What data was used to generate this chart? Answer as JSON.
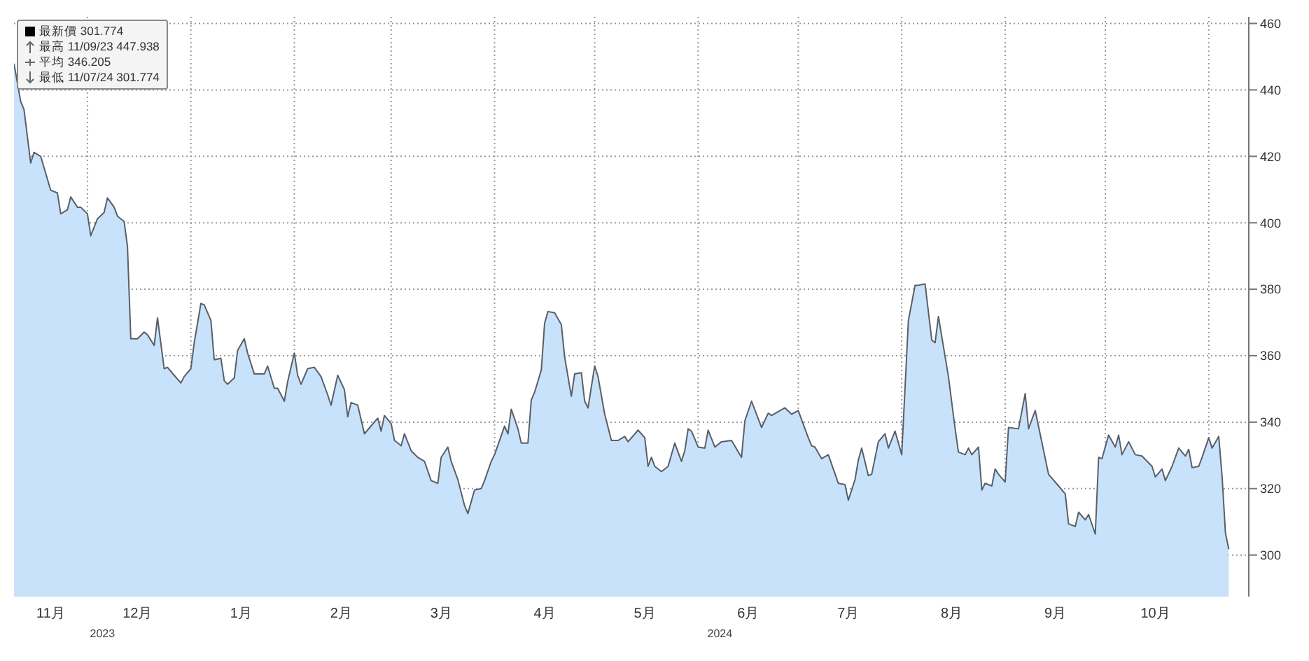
{
  "chart_data": {
    "type": "area",
    "annotations": [
      "最新價 301.774",
      "最高 11/09/23 447.938",
      "平均 346.205",
      "最低 11/07/24 301.774",
      "2023",
      "2024"
    ],
    "x": [
      "2023-11-09",
      "2023-11-11",
      "2023-11-12",
      "2023-11-14",
      "2023-11-15",
      "2023-11-17",
      "2023-11-20",
      "2023-11-22",
      "2023-11-23",
      "2023-11-25",
      "2023-11-26",
      "2023-11-28",
      "2023-11-29",
      "2023-12-01",
      "2023-12-02",
      "2023-12-04",
      "2023-12-06",
      "2023-12-07",
      "2023-12-09",
      "2023-12-10",
      "2023-12-12",
      "2023-12-13",
      "2023-12-14",
      "2023-12-16",
      "2023-12-18",
      "2023-12-19",
      "2023-12-21",
      "2023-12-22",
      "2023-12-24",
      "2023-12-25",
      "2023-12-27",
      "2023-12-29",
      "2023-12-30",
      "2024-01-01",
      "2024-01-02",
      "2024-01-04",
      "2024-01-05",
      "2024-01-07",
      "2024-01-08",
      "2024-01-10",
      "2024-01-11",
      "2024-01-12",
      "2024-01-14",
      "2024-01-15",
      "2024-01-17",
      "2024-01-18",
      "2024-01-20",
      "2024-01-23",
      "2024-01-24",
      "2024-01-26",
      "2024-01-27",
      "2024-01-29",
      "2024-01-30",
      "2024-02-01",
      "2024-02-02",
      "2024-02-03",
      "2024-02-05",
      "2024-02-07",
      "2024-02-09",
      "2024-02-11",
      "2024-02-12",
      "2024-02-14",
      "2024-02-16",
      "2024-02-17",
      "2024-02-18",
      "2024-02-20",
      "2024-02-22",
      "2024-02-26",
      "2024-02-27",
      "2024-02-28",
      "2024-03-01",
      "2024-03-02",
      "2024-03-04",
      "2024-03-05",
      "2024-03-07",
      "2024-03-09",
      "2024-03-11",
      "2024-03-13",
      "2024-03-15",
      "2024-03-16",
      "2024-03-18",
      "2024-03-19",
      "2024-03-21",
      "2024-03-23",
      "2024-03-24",
      "2024-03-26",
      "2024-03-28",
      "2024-03-29",
      "2024-03-31",
      "2024-04-01",
      "2024-04-04",
      "2024-04-05",
      "2024-04-06",
      "2024-04-08",
      "2024-04-09",
      "2024-04-11",
      "2024-04-12",
      "2024-04-13",
      "2024-04-15",
      "2024-04-16",
      "2024-04-17",
      "2024-04-19",
      "2024-04-21",
      "2024-04-22",
      "2024-04-24",
      "2024-04-25",
      "2024-04-27",
      "2024-04-28",
      "2024-04-29",
      "2024-05-01",
      "2024-05-02",
      "2024-05-04",
      "2024-05-06",
      "2024-05-08",
      "2024-05-10",
      "2024-05-11",
      "2024-05-14",
      "2024-05-16",
      "2024-05-17",
      "2024-05-18",
      "2024-05-19",
      "2024-05-21",
      "2024-05-23",
      "2024-05-25",
      "2024-05-27",
      "2024-05-28",
      "2024-05-29",
      "2024-05-30",
      "2024-06-01",
      "2024-06-03",
      "2024-06-04",
      "2024-06-06",
      "2024-06-08",
      "2024-06-11",
      "2024-06-14",
      "2024-06-15",
      "2024-06-17",
      "2024-06-20",
      "2024-06-22",
      "2024-06-23",
      "2024-06-27",
      "2024-06-29",
      "2024-07-01",
      "2024-07-04",
      "2024-07-05",
      "2024-07-06",
      "2024-07-08",
      "2024-07-10",
      "2024-07-13",
      "2024-07-15",
      "2024-07-16",
      "2024-07-18",
      "2024-07-19",
      "2024-07-20",
      "2024-07-22",
      "2024-07-23",
      "2024-07-25",
      "2024-07-27",
      "2024-07-28",
      "2024-07-30",
      "2024-08-01",
      "2024-08-03",
      "2024-08-05",
      "2024-08-06",
      "2024-08-08",
      "2024-08-10",
      "2024-08-11",
      "2024-08-12",
      "2024-08-15",
      "2024-08-17",
      "2024-08-18",
      "2024-08-20",
      "2024-08-21",
      "2024-08-22",
      "2024-08-24",
      "2024-08-25",
      "2024-08-26",
      "2024-08-28",
      "2024-08-29",
      "2024-08-30",
      "2024-09-01",
      "2024-09-02",
      "2024-09-05",
      "2024-09-07",
      "2024-09-08",
      "2024-09-10",
      "2024-09-14",
      "2024-09-17",
      "2024-09-19",
      "2024-09-20",
      "2024-09-22",
      "2024-09-23",
      "2024-09-25",
      "2024-09-26",
      "2024-09-28",
      "2024-09-29",
      "2024-09-30",
      "2024-10-02",
      "2024-10-04",
      "2024-10-05",
      "2024-10-06",
      "2024-10-08",
      "2024-10-10",
      "2024-10-12",
      "2024-10-15",
      "2024-10-16",
      "2024-10-18",
      "2024-10-19",
      "2024-10-21",
      "2024-10-23",
      "2024-10-25",
      "2024-10-26",
      "2024-10-27",
      "2024-10-29",
      "2024-10-30",
      "2024-11-01",
      "2024-11-02",
      "2024-11-04",
      "2024-11-05",
      "2024-11-06",
      "2024-11-07"
    ],
    "series": [
      {
        "color": "#c8e2fc",
        "values": [
          447.9,
          436.5,
          434.1,
          418.0,
          421.2,
          420.0,
          409.8,
          409.0,
          402.7,
          403.9,
          407.8,
          404.7,
          404.7,
          402.7,
          396.1,
          401.2,
          403.1,
          407.5,
          404.7,
          402.0,
          400.4,
          392.9,
          365.1,
          365.1,
          367.1,
          366.3,
          363.1,
          371.4,
          356.1,
          356.5,
          354.1,
          351.8,
          353.7,
          356.1,
          363.9,
          375.7,
          375.3,
          370.6,
          358.8,
          359.2,
          352.5,
          351.4,
          353.3,
          361.6,
          365.1,
          360.8,
          354.5,
          354.5,
          356.9,
          350.2,
          350.2,
          346.3,
          352.2,
          360.8,
          354.1,
          351.4,
          356.1,
          356.5,
          353.7,
          348.2,
          345.1,
          354.1,
          349.8,
          341.6,
          345.9,
          345.1,
          336.5,
          341.2,
          337.3,
          342.0,
          339.6,
          334.5,
          332.9,
          336.5,
          331.4,
          329.4,
          328.2,
          322.4,
          321.6,
          329.4,
          332.5,
          328.2,
          322.7,
          314.9,
          312.5,
          319.6,
          320.0,
          322.4,
          328.2,
          330.2,
          338.8,
          336.5,
          343.9,
          338.0,
          333.7,
          333.7,
          346.7,
          349.0,
          355.7,
          369.8,
          373.3,
          372.9,
          369.4,
          359.6,
          347.8,
          354.5,
          354.9,
          346.3,
          344.3,
          356.9,
          353.7,
          342.4,
          334.5,
          334.5,
          335.7,
          334.1,
          337.6,
          335.3,
          326.7,
          329.4,
          326.7,
          325.1,
          326.7,
          333.7,
          328.2,
          331.4,
          338.0,
          337.3,
          332.5,
          332.2,
          337.6,
          332.5,
          334.1,
          334.5,
          329.4,
          340.4,
          346.3,
          338.4,
          342.7,
          342.0,
          344.3,
          342.4,
          343.5,
          335.3,
          332.9,
          332.5,
          329.0,
          330.2,
          321.6,
          321.2,
          316.5,
          322.7,
          328.6,
          332.2,
          323.9,
          324.3,
          334.1,
          336.5,
          332.2,
          337.3,
          330.2,
          370.6,
          381.2,
          381.2,
          381.6,
          364.7,
          363.9,
          371.8,
          353.7,
          338.0,
          331.0,
          330.2,
          332.2,
          330.2,
          332.5,
          319.6,
          321.6,
          320.8,
          325.9,
          324.3,
          322.0,
          338.4,
          338.0,
          348.6,
          338.0,
          343.5,
          324.3,
          320.8,
          318.4,
          309.4,
          308.6,
          312.9,
          310.6,
          312.2,
          306.3,
          329.4,
          329.0,
          336.1,
          332.5,
          336.1,
          330.2,
          334.1,
          330.2,
          329.8,
          326.7,
          323.5,
          325.9,
          322.4,
          326.7,
          332.2,
          329.8,
          331.8,
          326.3,
          326.7,
          329.4,
          335.3,
          332.2,
          335.7,
          323.5,
          306.7,
          301.774
        ]
      }
    ],
    "xlim": [
      "2023-11-09",
      "2024-11-13"
    ],
    "xticks": [
      {
        "value": "2023-11-20",
        "label": "11月"
      },
      {
        "value": "2023-12-01",
        "label": null
      },
      {
        "value": "2023-12-16",
        "label": "12月"
      },
      {
        "value": "2024-01-01",
        "label": null
      },
      {
        "value": "2024-01-16",
        "label": "1月"
      },
      {
        "value": "2024-02-01",
        "label": null
      },
      {
        "value": "2024-02-15",
        "label": "2月"
      },
      {
        "value": "2024-03-01",
        "label": null
      },
      {
        "value": "2024-03-16",
        "label": "3月"
      },
      {
        "value": "2024-04-01",
        "label": null
      },
      {
        "value": "2024-04-16",
        "label": "4月"
      },
      {
        "value": "2024-05-01",
        "label": null
      },
      {
        "value": "2024-05-16",
        "label": "5月"
      },
      {
        "value": "2024-06-01",
        "label": null
      },
      {
        "value": "2024-06-16",
        "label": "6月"
      },
      {
        "value": "2024-07-01",
        "label": null
      },
      {
        "value": "2024-07-16",
        "label": "7月"
      },
      {
        "value": "2024-08-01",
        "label": null
      },
      {
        "value": "2024-08-16",
        "label": "8月"
      },
      {
        "value": "2024-09-01",
        "label": null
      },
      {
        "value": "2024-09-16",
        "label": "9月"
      },
      {
        "value": "2024-10-01",
        "label": null
      },
      {
        "value": "2024-10-16",
        "label": "10月"
      },
      {
        "value": "2024-11-01",
        "label": null
      }
    ],
    "ylim": [
      287.5,
      462
    ],
    "yticks": [
      300,
      320,
      340,
      360,
      380,
      400,
      420,
      440,
      460
    ],
    "grid": true
  }
}
